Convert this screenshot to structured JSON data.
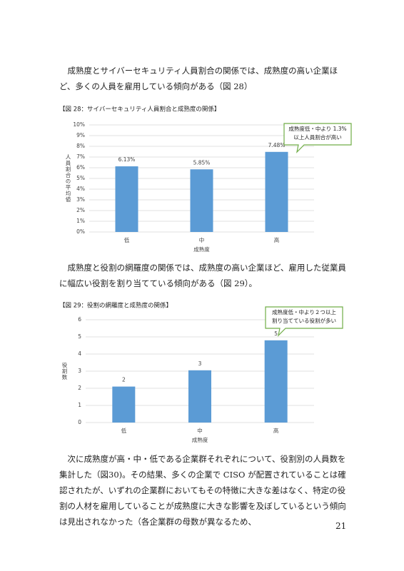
{
  "paragraphs": [
    "成熟度とサイバーセキュリティ人員割合の関係では、成熟度の高い企業ほど、多くの人員を雇用している傾向がある（図 28）",
    "成熟度と役割の網羅度の関係では、成熟度の高い企業ほど、雇用した従業員に幅広い役割を割り当てている傾向がある（図 29）。",
    "次に成熟度が高・中・低である企業群それぞれについて、役割別の人員数を集計した（図30)。その結果、多くの企業で CISO が配置されていることは確認されたが、いずれの企業群においてもその特徴に大きな差はなく、特定の役割の人材を雇用していることが成熟度に大きな影響を及ぼしているという傾向は見出されなかった（各企業群の母数が異なるため、"
  ],
  "page_number": "21",
  "chart_data": [
    {
      "type": "bar",
      "title": "【図 28：サイバーセキュリティ人員割合と成熟度の関係】",
      "y_label": "人員割合の平均値",
      "x_label": "成熟度",
      "categories": [
        "低",
        "中",
        "高"
      ],
      "values": [
        6.13,
        5.85,
        7.48
      ],
      "value_labels": [
        "6.13%",
        "5.85%",
        "7.48%"
      ],
      "color": "#5b9bd5",
      "ylim": [
        0,
        10
      ],
      "yticks": [
        {
          "value": 0,
          "label": "0%"
        },
        {
          "value": 1,
          "label": "1%"
        },
        {
          "value": 2,
          "label": "2%"
        },
        {
          "value": 3,
          "label": "3%"
        },
        {
          "value": 4,
          "label": "4%"
        },
        {
          "value": 5,
          "label": "5%"
        },
        {
          "value": 6,
          "label": "6%"
        },
        {
          "value": 7,
          "label": "7%"
        },
        {
          "value": 8,
          "label": "8%"
        },
        {
          "value": 9,
          "label": "9%"
        },
        {
          "value": 10,
          "label": "10%"
        }
      ],
      "grid": true,
      "annotation": [
        "成熟度低・中より 1.3%",
        "以上人員割合が高い"
      ]
    },
    {
      "type": "bar",
      "title": "【図 29：役割の網羅度と成熟度の関係】",
      "y_label": "役割数",
      "x_label": "成熟度",
      "categories": [
        "低",
        "中",
        "高"
      ],
      "values": [
        2.1,
        3.05,
        4.8
      ],
      "value_labels": [
        "2",
        "3",
        "5"
      ],
      "color": "#5b9bd5",
      "ylim": [
        0,
        6
      ],
      "yticks": [
        0,
        1,
        2,
        3,
        4,
        5,
        6
      ],
      "grid": true,
      "annotation": [
        "成熟度低・中より２つ以上",
        "割り当てている役割が多い"
      ]
    }
  ]
}
